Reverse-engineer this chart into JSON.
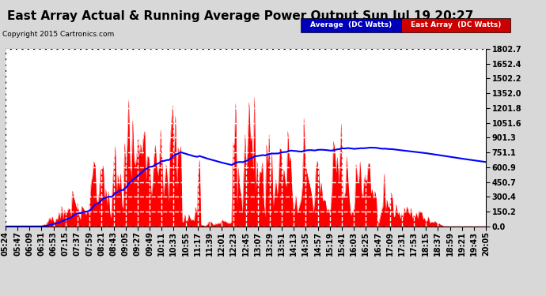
{
  "title": "East Array Actual & Running Average Power Output Sun Jul 19 20:27",
  "copyright": "Copyright 2015 Cartronics.com",
  "legend_avg": "Average  (DC Watts)",
  "legend_east": "East Array  (DC Watts)",
  "ylabel_max": 1802.7,
  "ylabel_min": 0.0,
  "yticks": [
    0.0,
    150.2,
    300.4,
    450.7,
    600.9,
    751.1,
    901.3,
    1051.6,
    1201.8,
    1352.0,
    1502.2,
    1652.4,
    1802.7
  ],
  "x_labels": [
    "05:24",
    "05:47",
    "06:09",
    "06:31",
    "06:53",
    "07:15",
    "07:37",
    "07:59",
    "08:21",
    "08:43",
    "09:05",
    "09:27",
    "09:49",
    "10:11",
    "10:33",
    "10:55",
    "11:17",
    "11:39",
    "12:01",
    "12:23",
    "12:45",
    "13:07",
    "13:29",
    "13:51",
    "14:13",
    "14:35",
    "14:57",
    "15:19",
    "15:41",
    "16:03",
    "16:25",
    "16:47",
    "17:09",
    "17:31",
    "17:53",
    "18:15",
    "18:37",
    "18:59",
    "19:21",
    "19:43",
    "20:05"
  ],
  "background_color": "#d8d8d8",
  "plot_background": "#ffffff",
  "grid_color": "#aaaaaa",
  "bar_color": "#ff0000",
  "avg_line_color": "#0000ff",
  "title_fontsize": 11,
  "tick_fontsize": 7,
  "legend_avg_bg": "#0000bb",
  "legend_east_bg": "#cc0000"
}
